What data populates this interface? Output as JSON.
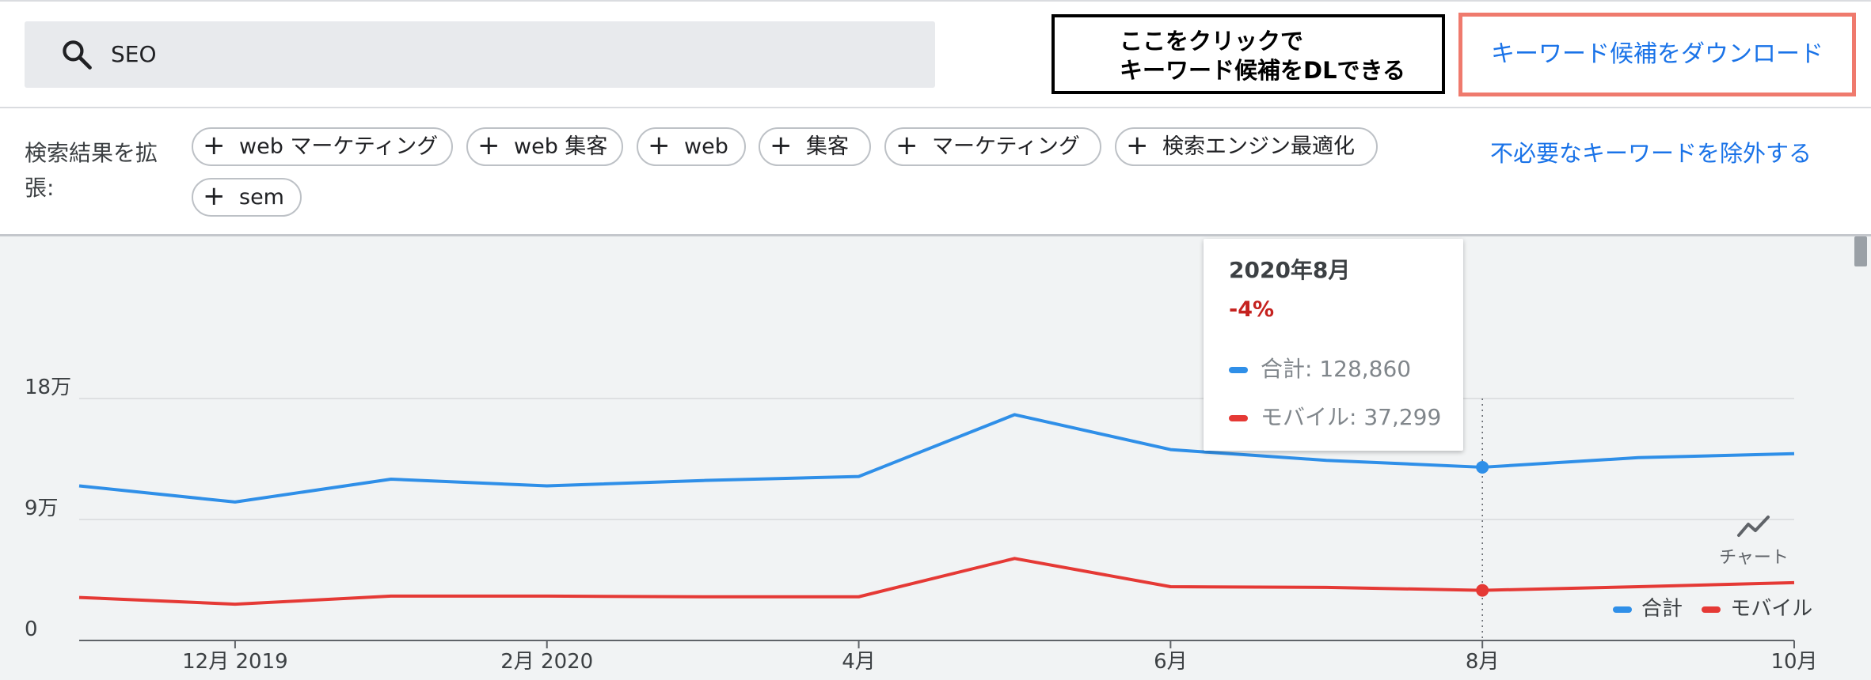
{
  "search": {
    "query": "SEO"
  },
  "annotation": {
    "line1": "ここをクリックで",
    "line2": "キーワード候補をDLできる"
  },
  "download_button": {
    "label": "キーワード候補をダウンロード"
  },
  "expand": {
    "label": "検索結果を拡張:",
    "chips": [
      "web マーケティング",
      "web 集客",
      "web",
      "集客",
      "マーケティング",
      "検索エンジン最適化",
      "sem"
    ]
  },
  "exclude_link": {
    "label": "不必要なキーワードを除外する"
  },
  "chart_toggle": {
    "label": "チャート",
    "icon": "trending-line-icon"
  },
  "legend": {
    "items": [
      "合計",
      "モバイル"
    ]
  },
  "colors": {
    "total": "#2f8fe8",
    "mobile": "#e53935",
    "link": "#1a73e8",
    "highlight": "#ef7a6d",
    "change_negative": "#c5221f"
  },
  "tooltip": {
    "title": "2020年8月",
    "change": "-4%",
    "total_text": "合計: 128,860",
    "mobile_text": "モバイル: 37,299"
  },
  "chart_data": {
    "type": "line",
    "title": "",
    "xlabel": "",
    "ylabel": "",
    "x": [
      "2019-11",
      "2019-12",
      "2020-01",
      "2020-02",
      "2020-03",
      "2020-04",
      "2020-05",
      "2020-06",
      "2020-07",
      "2020-08",
      "2020-09",
      "2020-10"
    ],
    "x_tick_labels": [
      {
        "x": "2019-12",
        "label": "12月 2019"
      },
      {
        "x": "2020-02",
        "label": "2月 2020"
      },
      {
        "x": "2020-04",
        "label": "4月"
      },
      {
        "x": "2020-06",
        "label": "6月"
      },
      {
        "x": "2020-08",
        "label": "8月"
      },
      {
        "x": "2020-10",
        "label": "10月"
      }
    ],
    "y_ticks": [
      {
        "value": 0,
        "label": "0"
      },
      {
        "value": 90000,
        "label": "9万"
      },
      {
        "value": 180000,
        "label": "18万"
      }
    ],
    "ylim": [
      0,
      180000
    ],
    "grid": true,
    "legend_position": "top-right",
    "series": [
      {
        "name": "合計",
        "values": [
          115000,
          103000,
          120000,
          115000,
          119000,
          122000,
          168000,
          142000,
          134000,
          128860,
          136000,
          139000
        ]
      },
      {
        "name": "モバイル",
        "values": [
          32000,
          27000,
          33000,
          33000,
          32500,
          32500,
          61000,
          40000,
          39500,
          37299,
          40000,
          43000
        ]
      }
    ],
    "highlight": {
      "x": "2020-08"
    }
  }
}
